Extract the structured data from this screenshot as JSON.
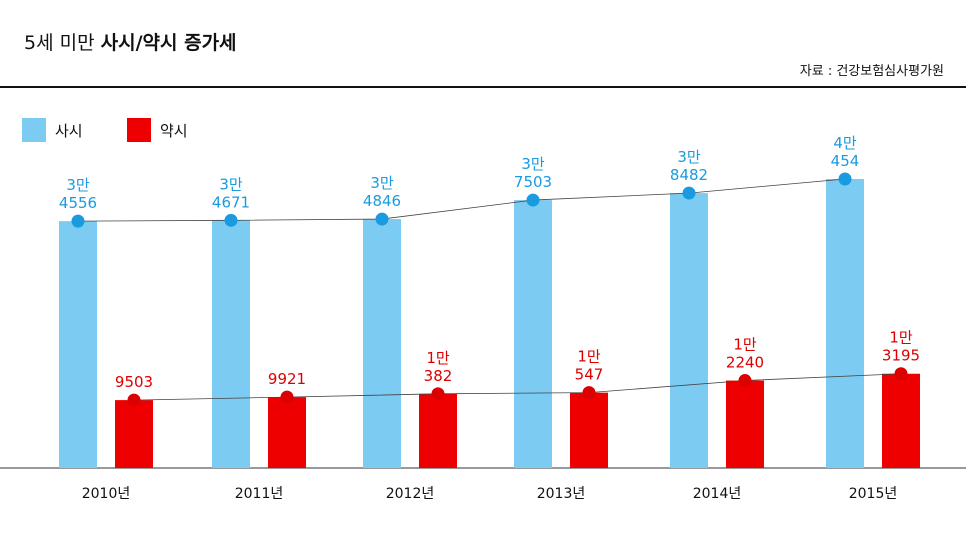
{
  "header": {
    "title_prefix": "5세 미만",
    "title_bold": "사시/약시 증가세",
    "source": "자료 : 건강보험심사평가원"
  },
  "colors": {
    "series_1": "#7ccbf2",
    "series_1_marker": "#1a9be0",
    "series_1_label": "#1a9be0",
    "series_2": "#ee0000",
    "series_2_marker": "#dd0000",
    "series_2_label": "#dd0000"
  },
  "chart_data": {
    "type": "bar",
    "categories": [
      "2010년",
      "2011년",
      "2012년",
      "2013년",
      "2014년",
      "2015년"
    ],
    "series": [
      {
        "name": "사시",
        "values": [
          34556,
          34671,
          34846,
          37503,
          38482,
          40454
        ],
        "labels": [
          [
            "3만",
            "4556"
          ],
          [
            "3만",
            "4671"
          ],
          [
            "3만",
            "4846"
          ],
          [
            "3만",
            "7503"
          ],
          [
            "3만",
            "8482"
          ],
          [
            "4만",
            "454"
          ]
        ]
      },
      {
        "name": "약시",
        "values": [
          9503,
          9921,
          10382,
          10547,
          12240,
          13195
        ],
        "labels": [
          [
            "",
            "9503"
          ],
          [
            "",
            "9921"
          ],
          [
            "1만",
            "382"
          ],
          [
            "1만",
            "547"
          ],
          [
            "1만",
            "2240"
          ],
          [
            "1만",
            "3195"
          ]
        ]
      }
    ],
    "legend": "top-left",
    "trend_lines": true
  }
}
